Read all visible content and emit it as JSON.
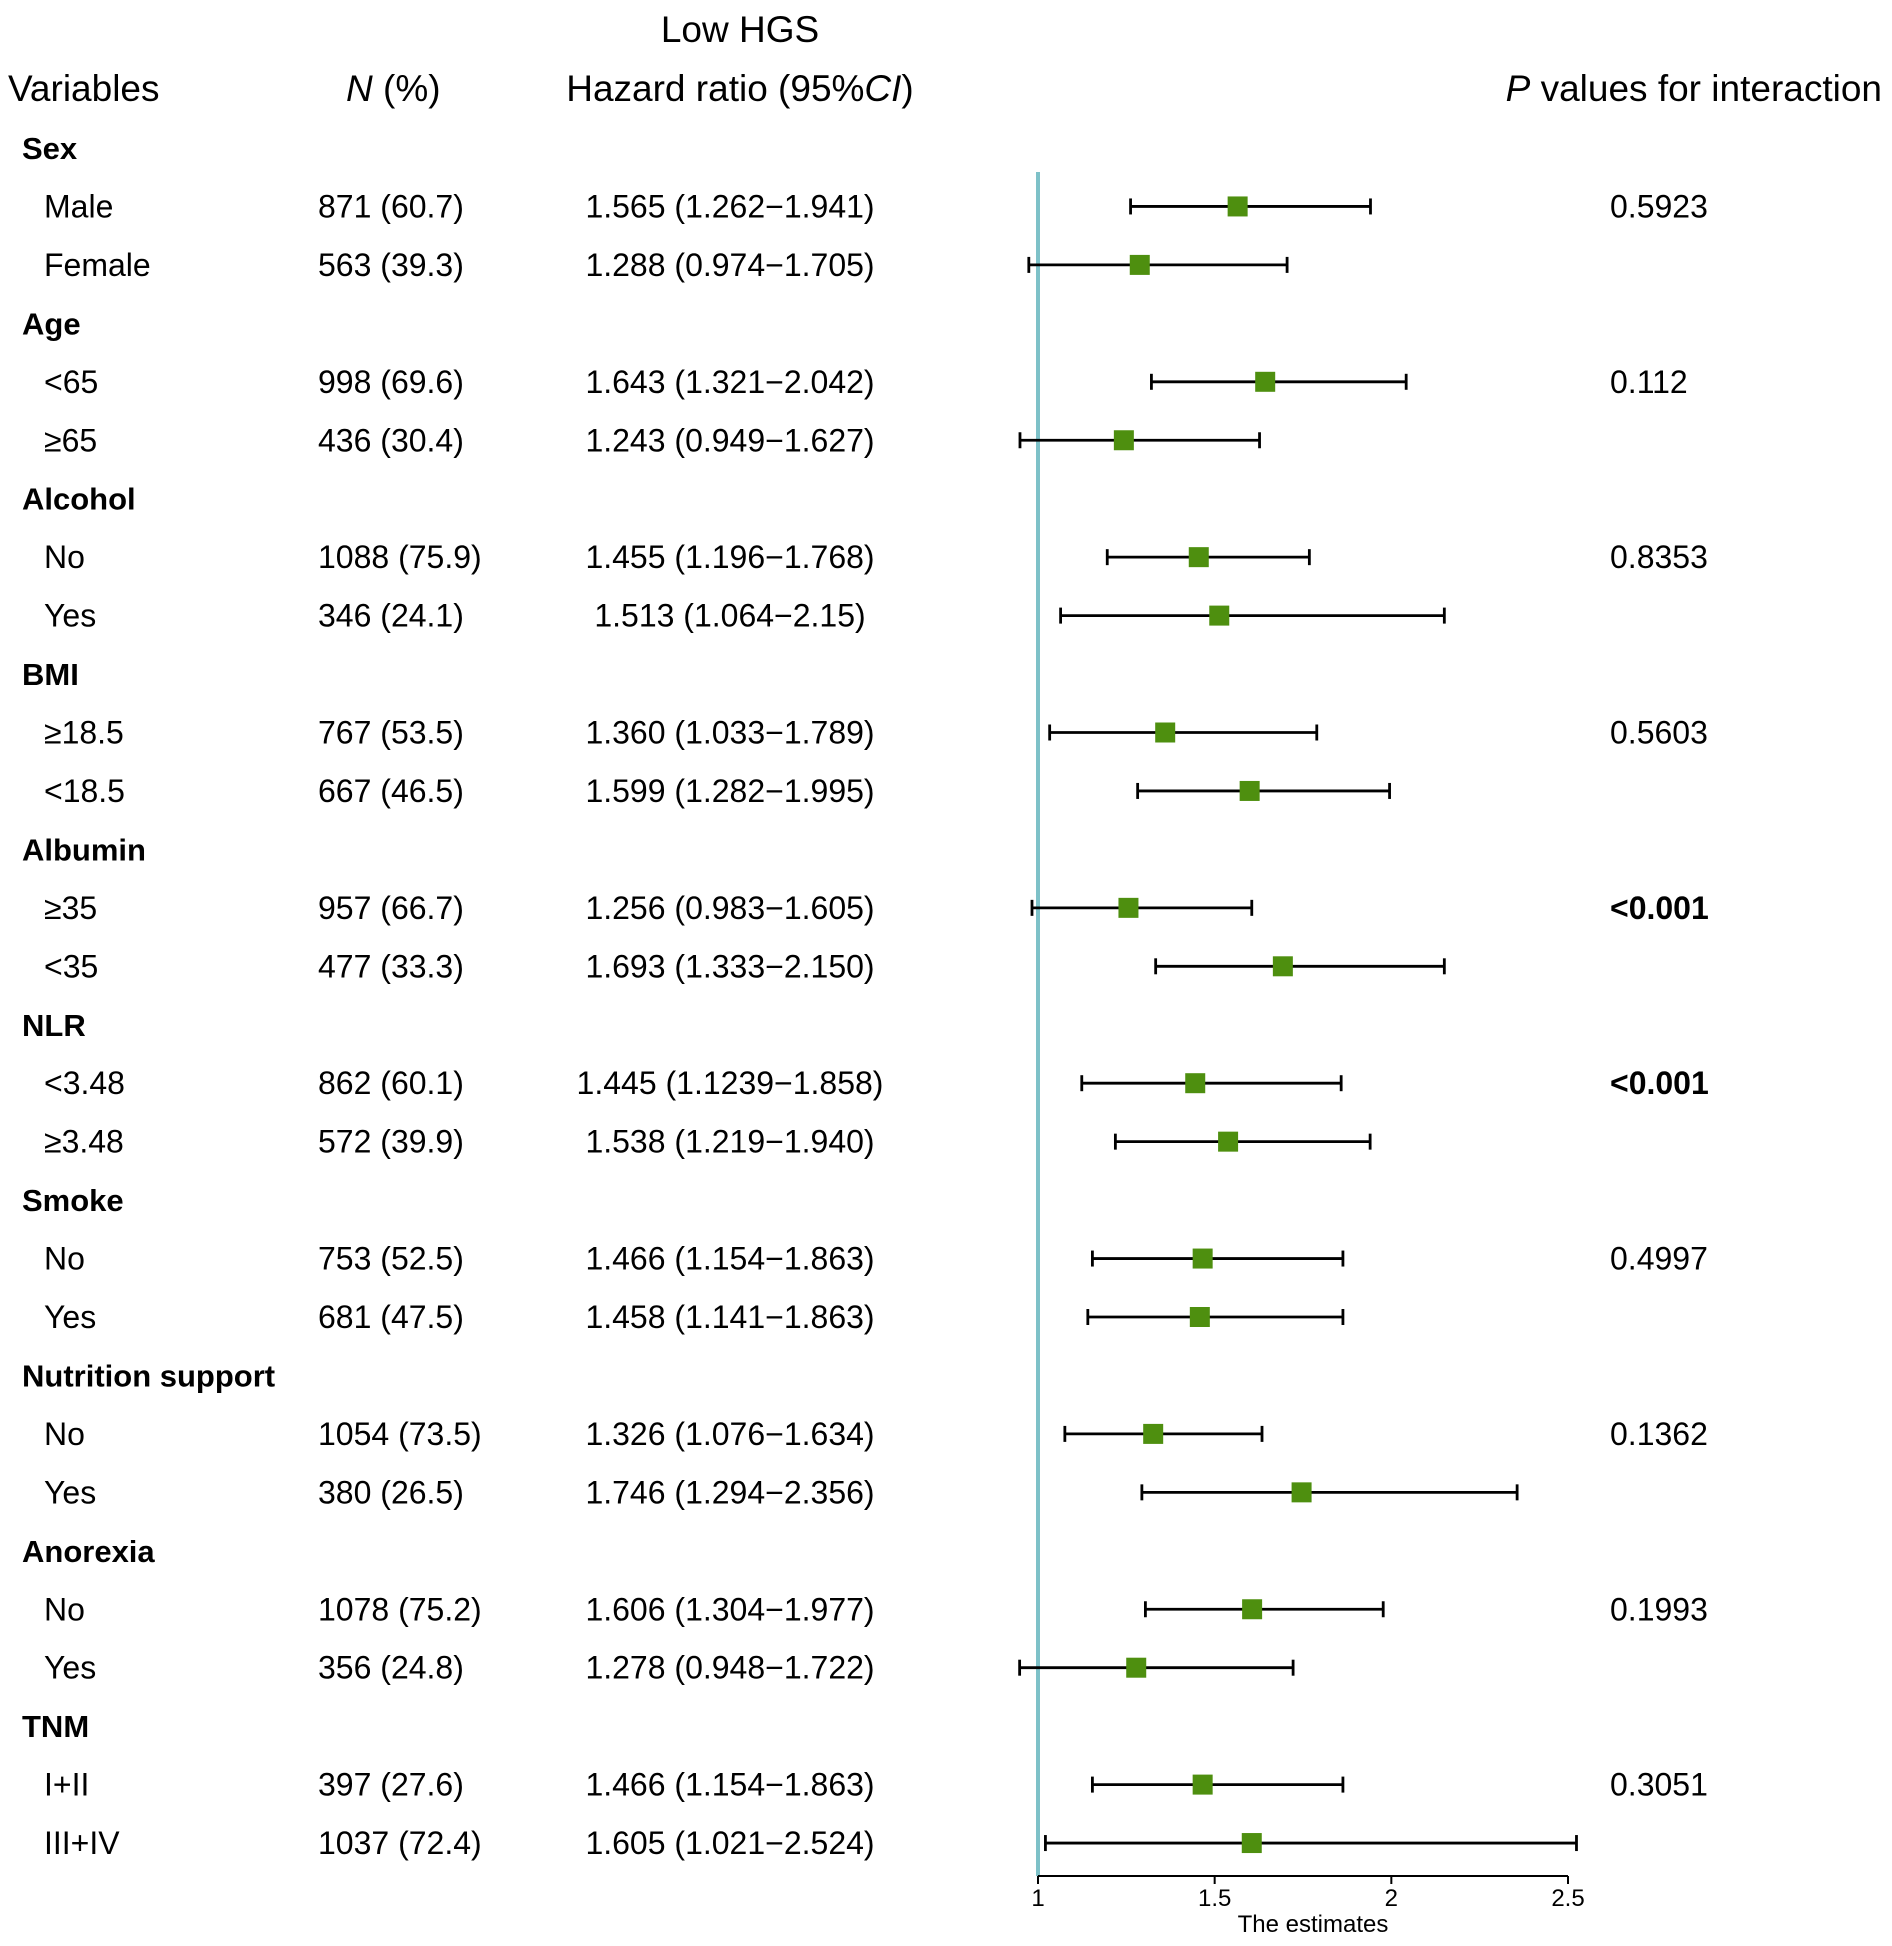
{
  "headers": {
    "variables": "Variables",
    "n_italic": "N",
    "n_rest": " (%)",
    "hgs_top": "Low HGS",
    "hr_main": "Hazard ratio (95%",
    "hr_italic": "CI",
    "hr_close": ")",
    "p_italic": "P",
    "p_rest": " values for interaction"
  },
  "chart_data": {
    "type": "forest",
    "xlabel": "The estimates",
    "xlim": [
      1,
      2.5
    ],
    "ticks": [
      1,
      1.5,
      2,
      2.5
    ],
    "tick_labels": [
      "1",
      "1.5",
      "2",
      "2.5"
    ],
    "reference_line": 1,
    "colors": {
      "marker": "#4E8F0F",
      "reference": "#7EC1C8",
      "whisker": "#000000"
    },
    "groups": [
      {
        "name": "Sex",
        "p": "0.5923",
        "p_bold": false,
        "rows": [
          {
            "label": "Male",
            "n": "871 (60.7)",
            "hr_text": "1.565 (1.262−1.941)",
            "hr": 1.565,
            "lo": 1.262,
            "hi": 1.941
          },
          {
            "label": "Female",
            "n": "563 (39.3)",
            "hr_text": "1.288 (0.974−1.705)",
            "hr": 1.288,
            "lo": 0.974,
            "hi": 1.705
          }
        ]
      },
      {
        "name": "Age",
        "p": "0.112",
        "p_bold": false,
        "rows": [
          {
            "label": "<65",
            "n": "998 (69.6)",
            "hr_text": "1.643 (1.321−2.042)",
            "hr": 1.643,
            "lo": 1.321,
            "hi": 2.042
          },
          {
            "label": "≥65",
            "n": "436 (30.4)",
            "hr_text": "1.243 (0.949−1.627)",
            "hr": 1.243,
            "lo": 0.949,
            "hi": 1.627
          }
        ]
      },
      {
        "name": "Alcohol",
        "p": "0.8353",
        "p_bold": false,
        "rows": [
          {
            "label": "No",
            "n": "1088 (75.9)",
            "hr_text": "1.455 (1.196−1.768)",
            "hr": 1.455,
            "lo": 1.196,
            "hi": 1.768
          },
          {
            "label": "Yes",
            "n": "346 (24.1)",
            "hr_text": "1.513 (1.064−2.15)",
            "hr": 1.513,
            "lo": 1.064,
            "hi": 2.15
          }
        ]
      },
      {
        "name": "BMI",
        "p": "0.5603",
        "p_bold": false,
        "rows": [
          {
            "label": "≥18.5",
            "n": "767 (53.5)",
            "hr_text": "1.360 (1.033−1.789)",
            "hr": 1.36,
            "lo": 1.033,
            "hi": 1.789
          },
          {
            "label": "<18.5",
            "n": "667 (46.5)",
            "hr_text": "1.599 (1.282−1.995)",
            "hr": 1.599,
            "lo": 1.282,
            "hi": 1.995
          }
        ]
      },
      {
        "name": "Albumin",
        "p": "<0.001",
        "p_bold": true,
        "rows": [
          {
            "label": "≥35",
            "n": "957 (66.7)",
            "hr_text": "1.256 (0.983−1.605)",
            "hr": 1.256,
            "lo": 0.983,
            "hi": 1.605
          },
          {
            "label": "<35",
            "n": "477 (33.3)",
            "hr_text": "1.693 (1.333−2.150)",
            "hr": 1.693,
            "lo": 1.333,
            "hi": 2.15
          }
        ]
      },
      {
        "name": "NLR",
        "p": "<0.001",
        "p_bold": true,
        "rows": [
          {
            "label": "<3.48",
            "n": "862 (60.1)",
            "hr_text": "1.445 (1.1239−1.858)",
            "hr": 1.445,
            "lo": 1.1239,
            "hi": 1.858
          },
          {
            "label": "≥3.48",
            "n": "572 (39.9)",
            "hr_text": "1.538 (1.219−1.940)",
            "hr": 1.538,
            "lo": 1.219,
            "hi": 1.94
          }
        ]
      },
      {
        "name": "Smoke",
        "p": "0.4997",
        "p_bold": false,
        "rows": [
          {
            "label": "No",
            "n": "753 (52.5)",
            "hr_text": "1.466 (1.154−1.863)",
            "hr": 1.466,
            "lo": 1.154,
            "hi": 1.863
          },
          {
            "label": "Yes",
            "n": "681 (47.5)",
            "hr_text": "1.458 (1.141−1.863)",
            "hr": 1.458,
            "lo": 1.141,
            "hi": 1.863
          }
        ]
      },
      {
        "name": "Nutrition support",
        "p": "0.1362",
        "p_bold": false,
        "rows": [
          {
            "label": "No",
            "n": "1054 (73.5)",
            "hr_text": "1.326 (1.076−1.634)",
            "hr": 1.326,
            "lo": 1.076,
            "hi": 1.634
          },
          {
            "label": "Yes",
            "n": "380 (26.5)",
            "hr_text": "1.746 (1.294−2.356)",
            "hr": 1.746,
            "lo": 1.294,
            "hi": 2.356
          }
        ]
      },
      {
        "name": "Anorexia",
        "p": "0.1993",
        "p_bold": false,
        "rows": [
          {
            "label": "No",
            "n": "1078 (75.2)",
            "hr_text": "1.606 (1.304−1.977)",
            "hr": 1.606,
            "lo": 1.304,
            "hi": 1.977
          },
          {
            "label": "Yes",
            "n": "356 (24.8)",
            "hr_text": "1.278 (0.948−1.722)",
            "hr": 1.278,
            "lo": 0.948,
            "hi": 1.722
          }
        ]
      },
      {
        "name": "TNM",
        "p": "0.3051",
        "p_bold": false,
        "rows": [
          {
            "label": "I+II",
            "n": "397 (27.6)",
            "hr_text": "1.466 (1.154−1.863)",
            "hr": 1.466,
            "lo": 1.154,
            "hi": 1.863
          },
          {
            "label": "III+IV",
            "n": "1037 (72.4)",
            "hr_text": "1.605 (1.021−2.524)",
            "hr": 1.605,
            "lo": 1.021,
            "hi": 2.524
          }
        ]
      }
    ]
  }
}
